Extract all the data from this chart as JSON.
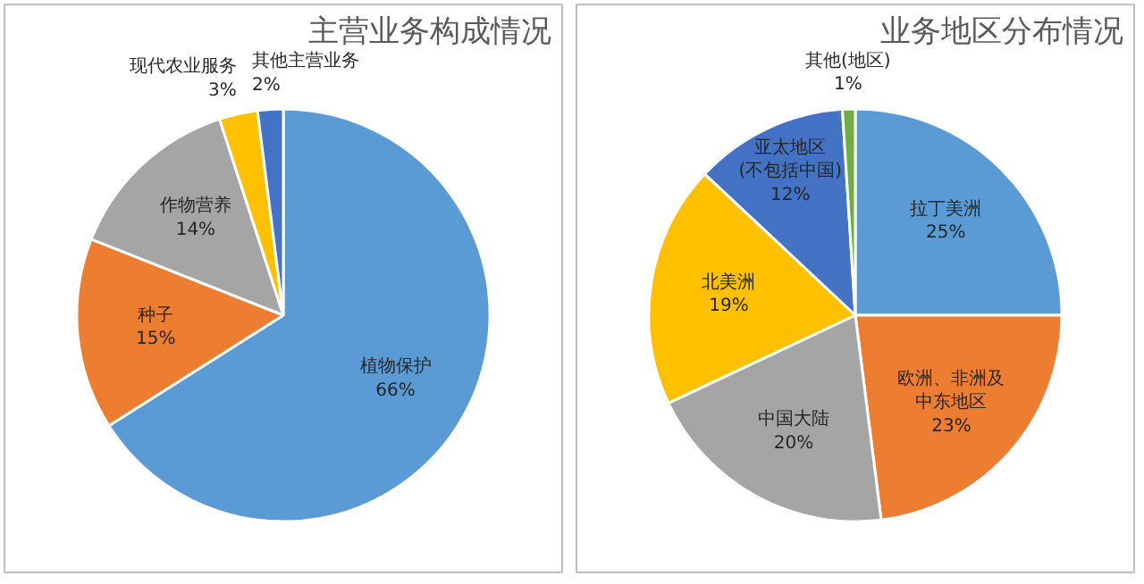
{
  "chart_data": [
    {
      "type": "pie",
      "title": "主营业务构成情况",
      "categories": [
        "植物保护",
        "种子",
        "作物营养",
        "现代农业服务",
        "其他主营业务"
      ],
      "values": [
        66,
        15,
        14,
        3,
        2
      ],
      "value_labels": [
        "66%",
        "15%",
        "14%",
        "3%",
        "2%"
      ],
      "colors": [
        "#5b9bd5",
        "#ed7d31",
        "#a5a5a5",
        "#ffc000",
        "#4472c4"
      ]
    },
    {
      "type": "pie",
      "title": "业务地区分布情况",
      "categories": [
        "拉丁美洲",
        "欧洲、非洲及中东地区",
        "中国大陆",
        "北美洲",
        "亚太地区(不包括中国)",
        "其他(地区)"
      ],
      "values": [
        25,
        23,
        20,
        19,
        12,
        1
      ],
      "value_labels": [
        "25%",
        "23%",
        "20%",
        "19%",
        "12%",
        "1%"
      ],
      "colors": [
        "#5b9bd5",
        "#ed7d31",
        "#a5a5a5",
        "#ffc000",
        "#4472c4",
        "#70ad47"
      ]
    }
  ]
}
